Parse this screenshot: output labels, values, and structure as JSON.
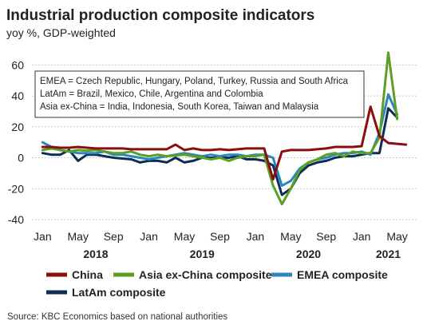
{
  "chart_data": {
    "type": "line",
    "title": "Industrial production composite indicators",
    "subtitle": "yoy %, GDP-weighted",
    "ylim": [
      -40,
      70
    ],
    "yticks": [
      -40,
      -20,
      0,
      20,
      40,
      60
    ],
    "grid": true,
    "x_start": "2018-01",
    "x_end": "2021-06",
    "x_tick_labels": [
      "Jan",
      "May",
      "Sep",
      "Jan",
      "May",
      "Sep",
      "Jan",
      "May",
      "Sep",
      "Jan",
      "May"
    ],
    "x_tick_months": [
      "2018-01",
      "2018-05",
      "2018-09",
      "2019-01",
      "2019-05",
      "2019-09",
      "2020-01",
      "2020-05",
      "2020-09",
      "2021-01",
      "2021-05"
    ],
    "year_labels": [
      {
        "label": "2018",
        "month": "2018-07"
      },
      {
        "label": "2019",
        "month": "2019-07"
      },
      {
        "label": "2020",
        "month": "2020-07"
      },
      {
        "label": "2021",
        "month": "2021-04"
      }
    ],
    "notes": [
      "EMEA = Czech Republic, Hungary, Poland, Turkey, Russia and South Africa",
      "LatAm = Brazil, Mexico, Chile, Argentina and Colombia",
      "Asia ex-China = India, Indonesia, South Korea, Taiwan and Malaysia"
    ],
    "series": [
      {
        "name": "China",
        "color": "#8b0d0d",
        "x": [
          "2018-01",
          "2018-02",
          "2018-03",
          "2018-04",
          "2018-05",
          "2018-06",
          "2018-07",
          "2018-08",
          "2018-09",
          "2018-10",
          "2018-11",
          "2018-12",
          "2019-01",
          "2019-02",
          "2019-03",
          "2019-04",
          "2019-05",
          "2019-06",
          "2019-07",
          "2019-08",
          "2019-09",
          "2019-10",
          "2019-11",
          "2019-12",
          "2020-01",
          "2020-02",
          "2020-03",
          "2020-04",
          "2020-05",
          "2020-06",
          "2020-07",
          "2020-08",
          "2020-09",
          "2020-10",
          "2020-11",
          "2020-12",
          "2021-01",
          "2021-02",
          "2021-03",
          "2021-04",
          "2021-05",
          "2021-06"
        ],
        "values": [
          7,
          7,
          6.5,
          6.5,
          7,
          6.5,
          6,
          6,
          6,
          6,
          5.5,
          5.5,
          5.5,
          5.5,
          5.5,
          8.5,
          5,
          6,
          5,
          5,
          5.5,
          5,
          5.5,
          6,
          6,
          6,
          -14,
          4,
          5,
          5,
          5,
          5.5,
          6,
          7,
          7,
          7,
          7.5,
          33,
          14,
          9.5,
          9,
          8.5
        ]
      },
      {
        "name": "Asia ex-China composite",
        "color": "#5b9f23",
        "x": [
          "2018-01",
          "2018-02",
          "2018-03",
          "2018-04",
          "2018-05",
          "2018-06",
          "2018-07",
          "2018-08",
          "2018-09",
          "2018-10",
          "2018-11",
          "2018-12",
          "2019-01",
          "2019-02",
          "2019-03",
          "2019-04",
          "2019-05",
          "2019-06",
          "2019-07",
          "2019-08",
          "2019-09",
          "2019-10",
          "2019-11",
          "2019-12",
          "2020-01",
          "2020-02",
          "2020-03",
          "2020-04",
          "2020-05",
          "2020-06",
          "2020-07",
          "2020-08",
          "2020-09",
          "2020-10",
          "2020-11",
          "2020-12",
          "2021-01",
          "2021-02",
          "2021-03",
          "2021-04",
          "2021-05"
        ],
        "values": [
          5,
          6,
          5,
          4,
          5,
          4.5,
          5,
          4,
          3,
          3,
          4,
          2,
          1,
          2,
          1,
          1.5,
          2,
          1,
          0,
          -1,
          0,
          -2,
          0,
          1,
          1,
          2,
          -18,
          -30,
          -20,
          -8,
          -3,
          -1,
          2,
          3,
          1,
          4,
          3,
          3,
          13,
          68,
          25
        ]
      },
      {
        "name": "EMEA composite",
        "color": "#2b86bc",
        "x": [
          "2018-01",
          "2018-02",
          "2018-03",
          "2018-04",
          "2018-05",
          "2018-06",
          "2018-07",
          "2018-08",
          "2018-09",
          "2018-10",
          "2018-11",
          "2018-12",
          "2019-01",
          "2019-02",
          "2019-03",
          "2019-04",
          "2019-05",
          "2019-06",
          "2019-07",
          "2019-08",
          "2019-09",
          "2019-10",
          "2019-11",
          "2019-12",
          "2020-01",
          "2020-02",
          "2020-03",
          "2020-04",
          "2020-05",
          "2020-06",
          "2020-07",
          "2020-08",
          "2020-09",
          "2020-10",
          "2020-11",
          "2020-12",
          "2021-01",
          "2021-02",
          "2021-03",
          "2021-04",
          "2021-05"
        ],
        "values": [
          10,
          7,
          5,
          4,
          3,
          3,
          3,
          4,
          2,
          2,
          1,
          0,
          -1,
          0,
          1,
          2,
          3,
          2,
          1,
          2,
          1,
          2,
          2,
          1,
          2,
          2,
          0,
          -18,
          -15,
          -7,
          -3,
          -1,
          0,
          2,
          3,
          3,
          4,
          2,
          16,
          41,
          28
        ]
      },
      {
        "name": "LatAm composite",
        "color": "#0d2d52",
        "x": [
          "2018-01",
          "2018-02",
          "2018-03",
          "2018-04",
          "2018-05",
          "2018-06",
          "2018-07",
          "2018-08",
          "2018-09",
          "2018-10",
          "2018-11",
          "2018-12",
          "2019-01",
          "2019-02",
          "2019-03",
          "2019-04",
          "2019-05",
          "2019-06",
          "2019-07",
          "2019-08",
          "2019-09",
          "2019-10",
          "2019-11",
          "2019-12",
          "2020-01",
          "2020-02",
          "2020-03",
          "2020-04",
          "2020-05",
          "2020-06",
          "2020-07",
          "2020-08",
          "2020-09",
          "2020-10",
          "2020-11",
          "2020-12",
          "2021-01",
          "2021-02",
          "2021-03",
          "2021-04",
          "2021-05"
        ],
        "values": [
          3,
          2,
          2,
          5,
          -2,
          2,
          2,
          1,
          0,
          -0.5,
          -1,
          -3,
          -2,
          -2,
          -3,
          0,
          -3,
          -2,
          0,
          0,
          0,
          0,
          1,
          -1,
          -1,
          -2,
          -5,
          -24,
          -20,
          -10,
          -5,
          -3,
          -2,
          0,
          1,
          1,
          2,
          3,
          3,
          32,
          26
        ]
      }
    ]
  },
  "legend": {
    "items": [
      {
        "name": "China",
        "color": "#8b0d0d"
      },
      {
        "name": "Asia ex-China composite",
        "color": "#5b9f23"
      },
      {
        "name": "EMEA composite",
        "color": "#2b86bc"
      },
      {
        "name": "LatAm composite",
        "color": "#0d2d52"
      }
    ]
  },
  "source": "Source: KBC Economics based on national authorities"
}
